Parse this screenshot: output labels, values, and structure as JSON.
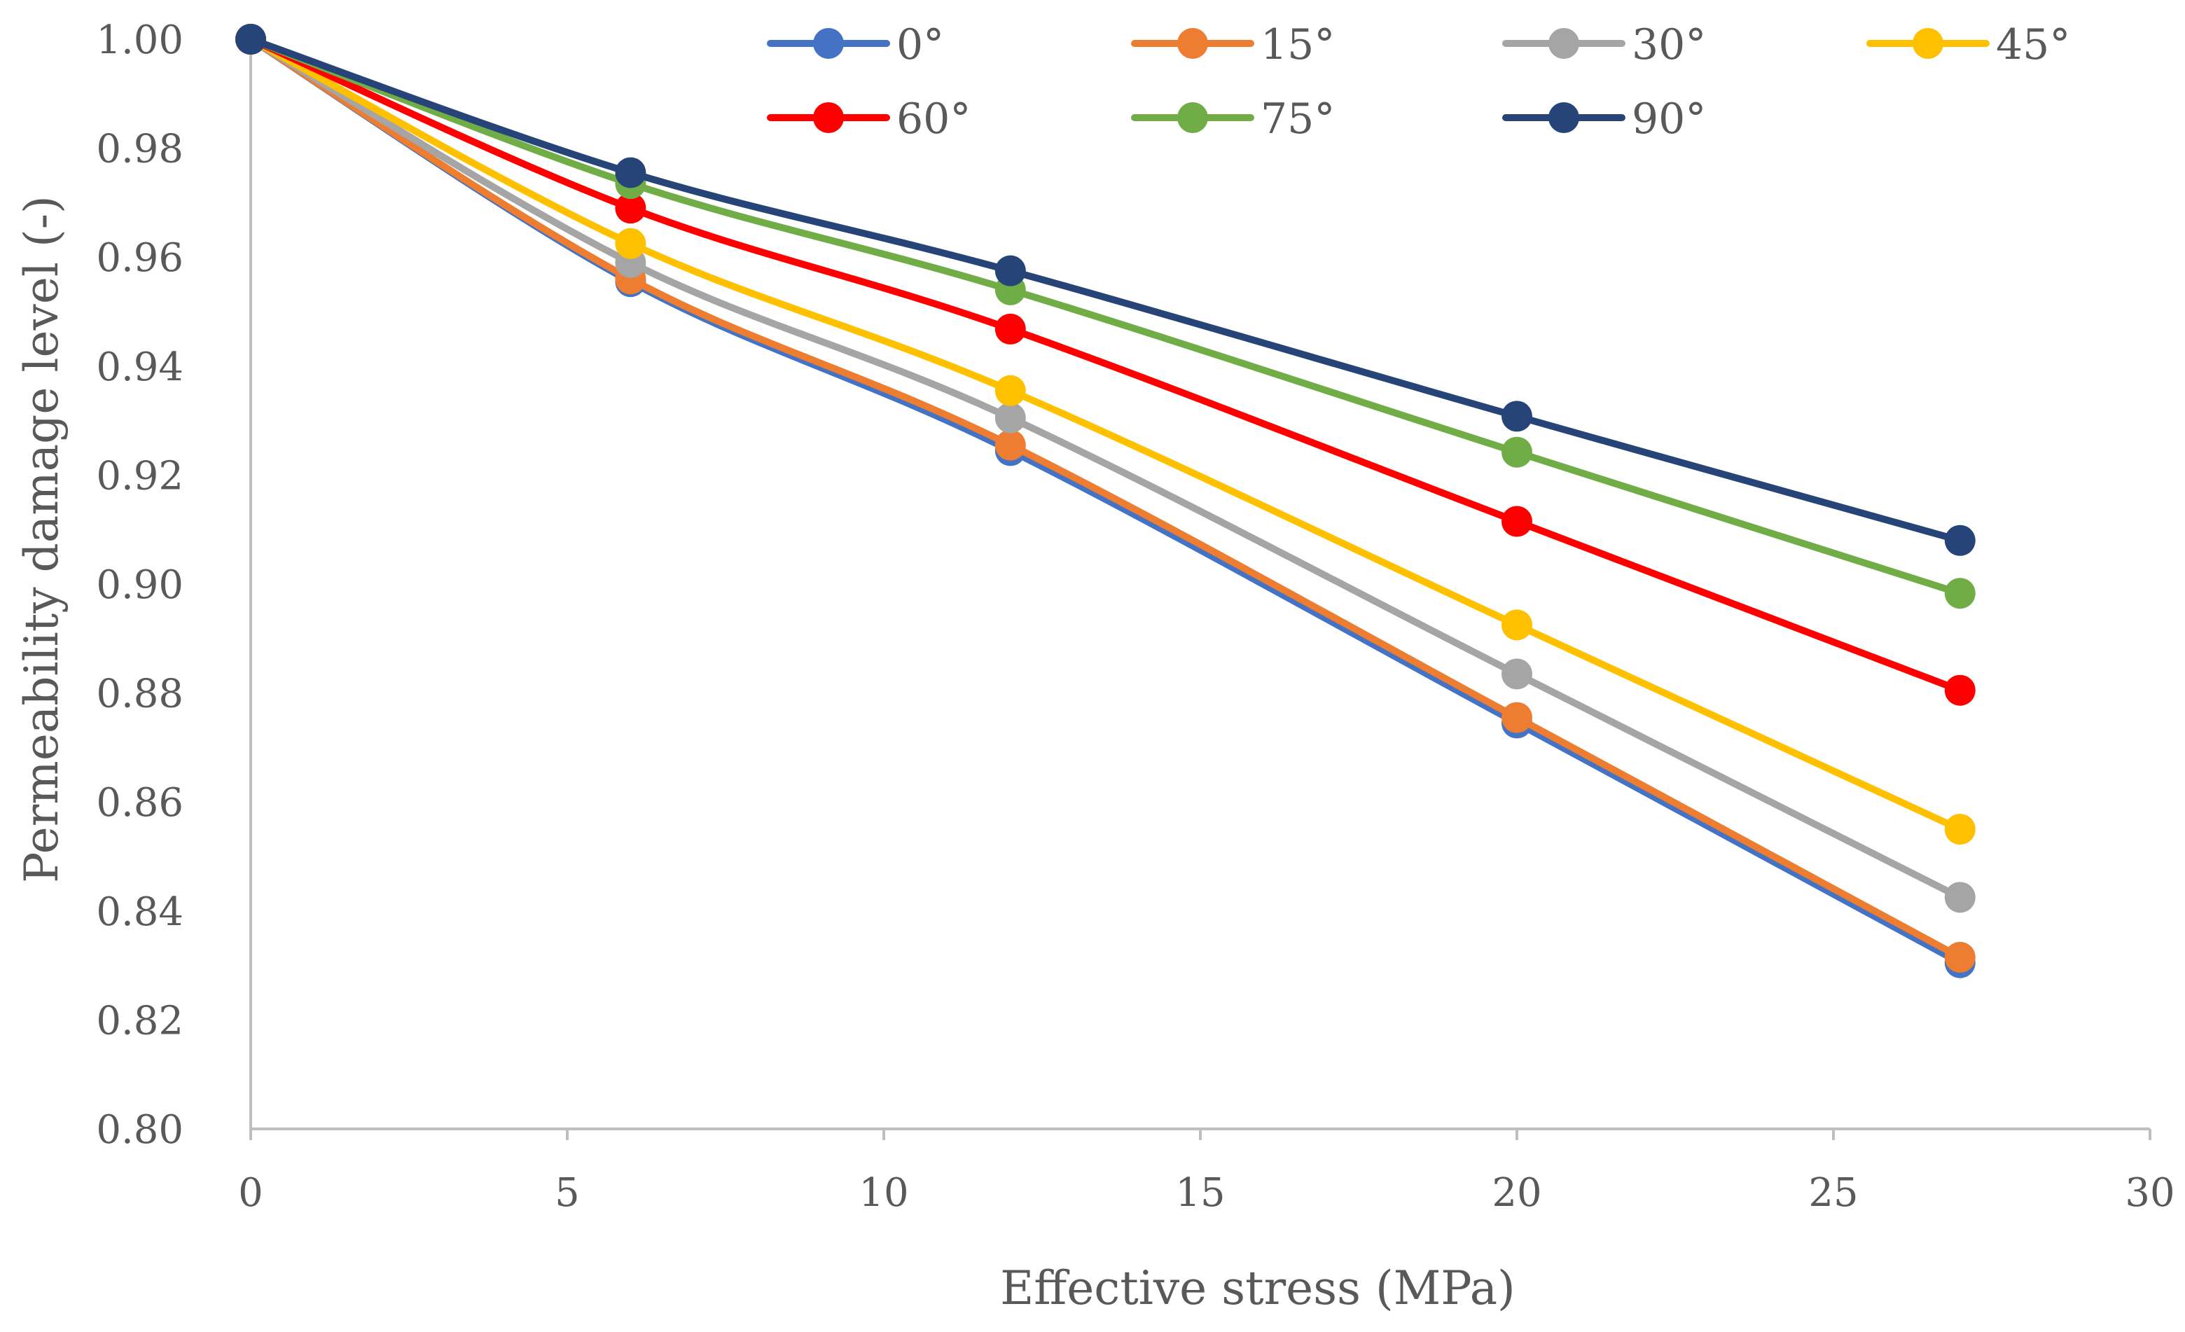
{
  "chart_data": {
    "type": "line",
    "title": "",
    "xlabel": "Effective stress (MPa)",
    "ylabel": "Permeability damage level (-)",
    "xlim": [
      0,
      30
    ],
    "ylim": [
      0.8,
      1.0
    ],
    "xticks": [
      0,
      5,
      10,
      15,
      20,
      25,
      30
    ],
    "yticks": [
      0.8,
      0.82,
      0.84,
      0.86,
      0.88,
      0.9,
      0.92,
      0.94,
      0.96,
      0.98,
      1.0
    ],
    "xtick_labels": [
      "0",
      "5",
      "10",
      "15",
      "20",
      "25",
      "30"
    ],
    "ytick_labels": [
      "0.80",
      "0.82",
      "0.84",
      "0.86",
      "0.88",
      "0.90",
      "0.92",
      "0.94",
      "0.96",
      "0.98",
      "1.00"
    ],
    "grid": false,
    "legend_position": "top",
    "x": [
      0,
      6,
      12,
      20,
      27
    ],
    "series": [
      {
        "name": "0°",
        "color": "#4472C4",
        "values": [
          1.0,
          0.9555,
          0.9245,
          0.8745,
          0.8305
        ]
      },
      {
        "name": "15°",
        "color": "#ED7D31",
        "values": [
          1.0,
          0.956,
          0.9255,
          0.8755,
          0.8315
        ]
      },
      {
        "name": "30°",
        "color": "#A5A5A5",
        "values": [
          1.0,
          0.959,
          0.9305,
          0.8835,
          0.8425
        ]
      },
      {
        "name": "45°",
        "color": "#FFC000",
        "values": [
          1.0,
          0.9625,
          0.9355,
          0.8925,
          0.855
        ]
      },
      {
        "name": "60°",
        "color": "#FF0000",
        "values": [
          1.0,
          0.969,
          0.9468,
          0.9115,
          0.8805
        ]
      },
      {
        "name": "75°",
        "color": "#70AD47",
        "values": [
          1.0,
          0.9735,
          0.954,
          0.9242,
          0.8983
        ]
      },
      {
        "name": "90°",
        "color": "#264478",
        "values": [
          1.0,
          0.9755,
          0.9575,
          0.9308,
          0.908
        ]
      }
    ]
  }
}
